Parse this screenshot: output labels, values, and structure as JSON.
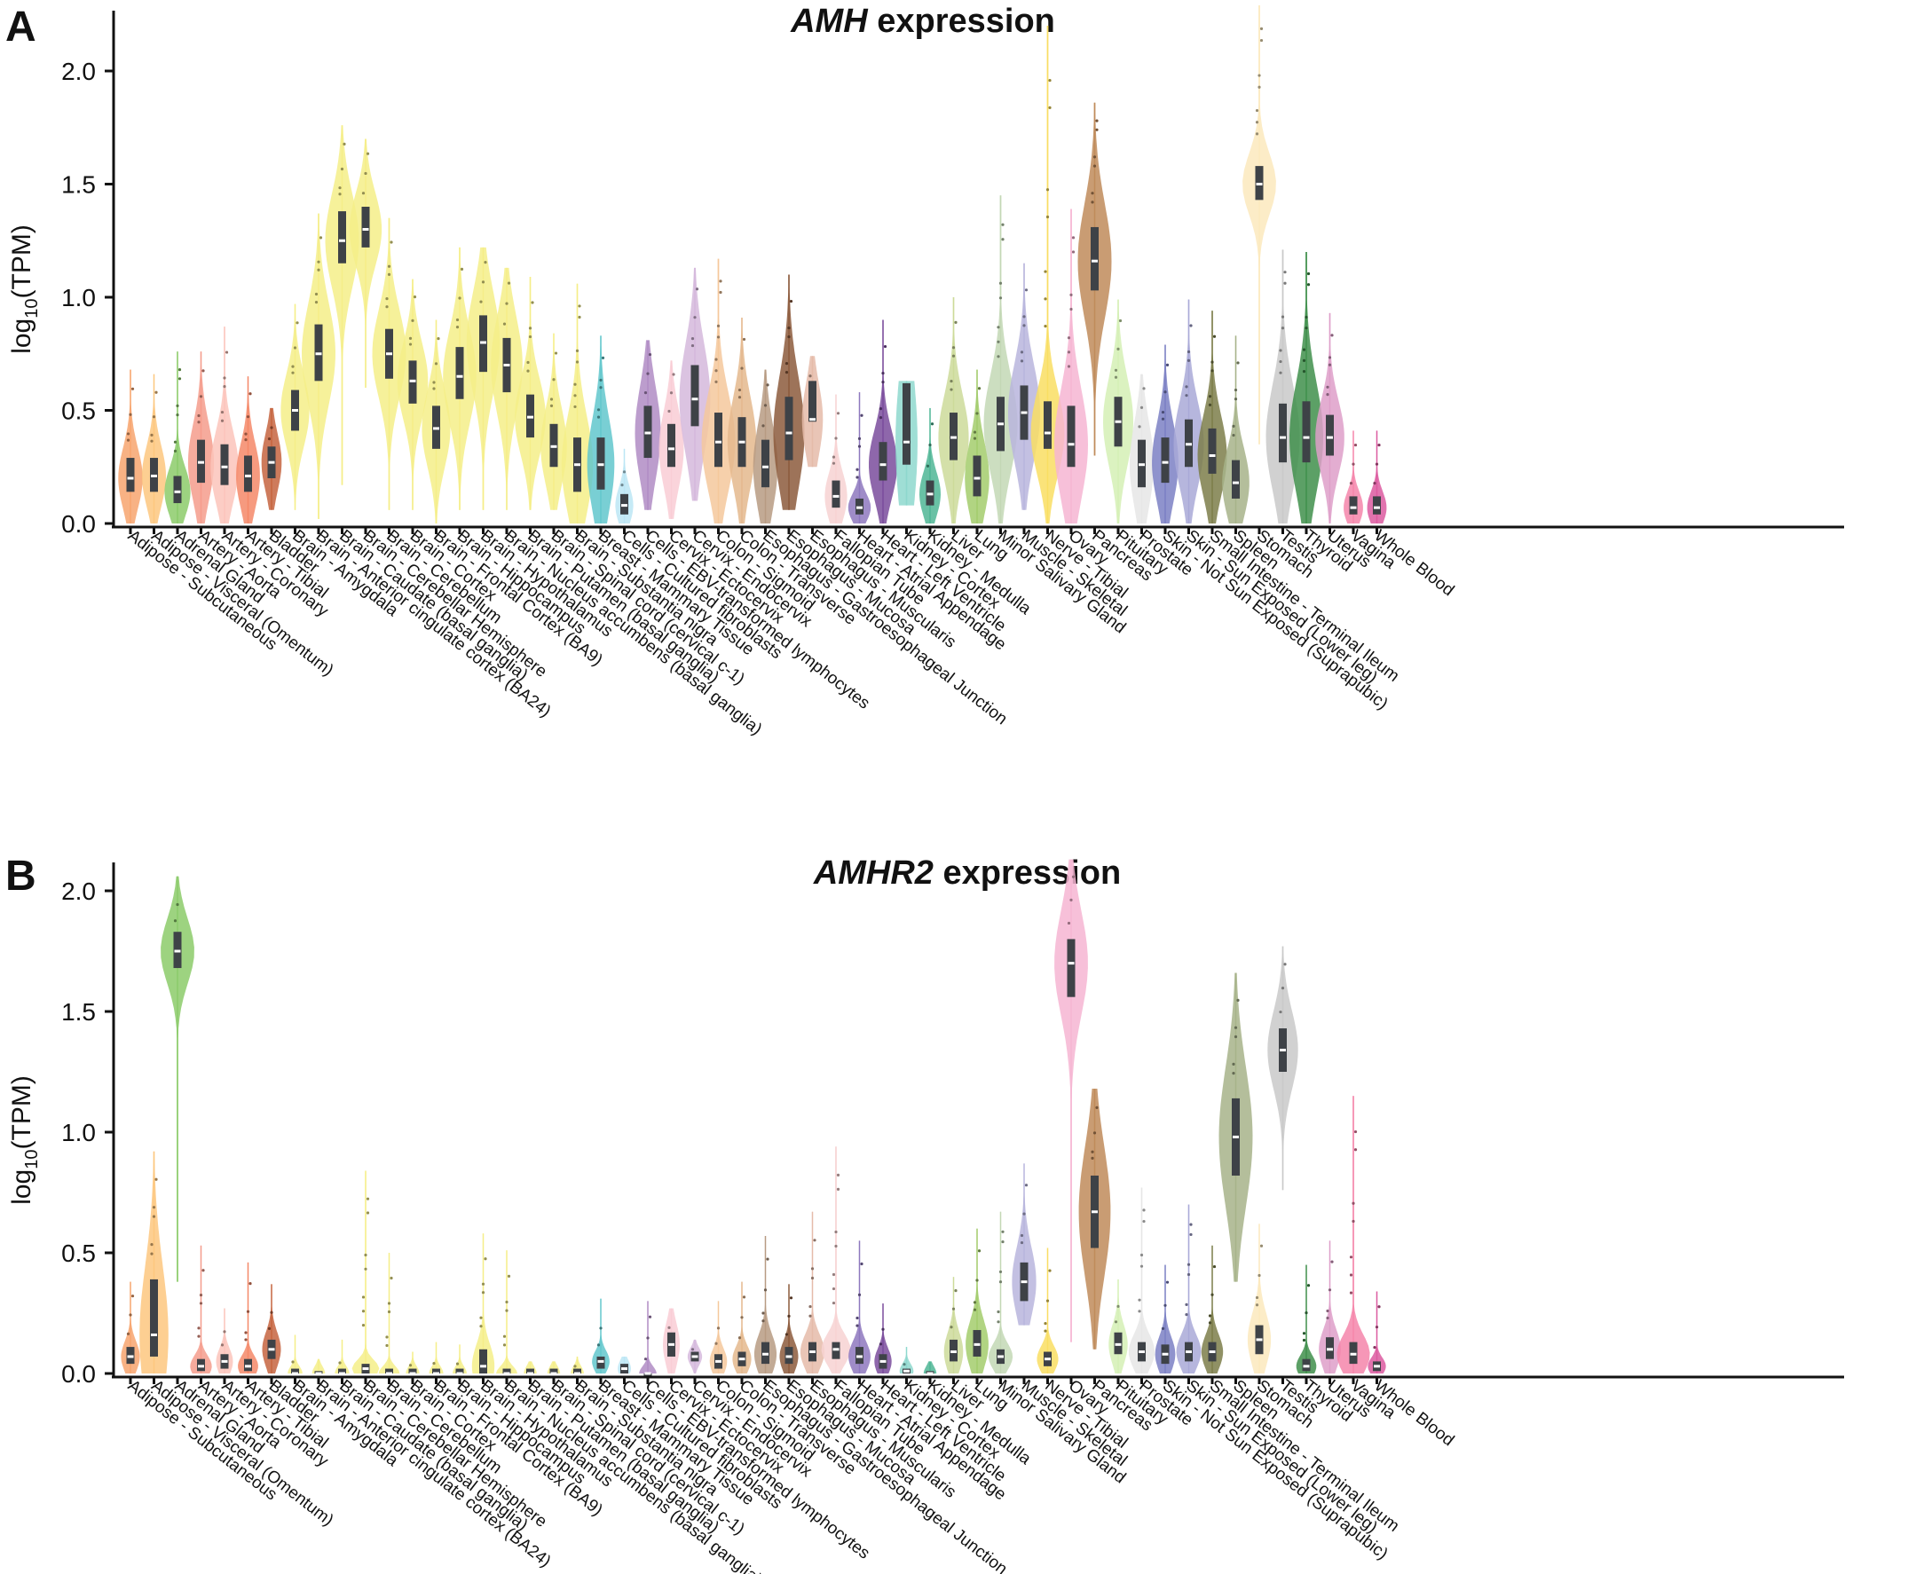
{
  "figure": {
    "aspect_note": ""
  },
  "chart_data": [
    {
      "type": "violin",
      "panel": "A",
      "title": "AMH expression",
      "title_gene": "AMH",
      "title_suffix": " expression",
      "ylabel": "log10(TPM)",
      "ylabel_main": "log",
      "ylabel_sub": "10",
      "ylabel_unit": "(TPM)",
      "ylim": [
        0,
        2.3
      ],
      "yticks": [
        "0.0",
        "0.5",
        "1.0",
        "1.5",
        "2.0"
      ],
      "ytick_values": [
        0,
        0.5,
        1.0,
        1.5,
        2.0
      ],
      "categories": [
        "Adipose - Subcutaneous",
        "Adipose - Visceral (Omentum)",
        "Adrenal Gland",
        "Artery - Aorta",
        "Artery - Coronary",
        "Artery - Tibial",
        "Bladder",
        "Brain - Amygdala",
        "Brain - Anterior cingulate cortex (BA24)",
        "Brain - Caudate (basal ganglia)",
        "Brain - Cerebellar Hemisphere",
        "Brain - Cerebellum",
        "Brain - Cortex",
        "Brain - Frontal Cortex (BA9)",
        "Brain - Hippocampus",
        "Brain - Hypothalamus",
        "Brain - Nucleus accumbens (basal ganglia)",
        "Brain - Putamen (basal ganglia)",
        "Brain - Spinal cord (cervical c-1)",
        "Brain - Substantia nigra",
        "Breast - Mammary Tissue",
        "Cells - Cultured fibroblasts",
        "Cells - EBV-transformed lymphocytes",
        "Cervix - Ectocervix",
        "Cervix - Endocervix",
        "Colon - Sigmoid",
        "Colon - Transverse",
        "Esophagus - Gastroesophageal Junction",
        "Esophagus - Mucosa",
        "Esophagus - Muscularis",
        "Fallopian Tube",
        "Heart - Atrial Appendage",
        "Heart - Left Ventricle",
        "Kidney - Cortex",
        "Kidney - Medulla",
        "Liver",
        "Lung",
        "Minor Salivary Gland",
        "Muscle - Skeletal",
        "Nerve - Tibial",
        "Ovary",
        "Pancreas",
        "Pituitary",
        "Prostate",
        "Skin - Not Sun Exposed (Suprapubic)",
        "Skin - Sun Exposed (Lower leg)",
        "Small Intestine - Terminal Ileum",
        "Spleen",
        "Stomach",
        "Testis",
        "Thyroid",
        "Uterus",
        "Vagina",
        "Whole Blood"
      ],
      "colors": [
        "#F7A56E",
        "#FDC77F",
        "#8CCB6A",
        "#F59C8C",
        "#FBC4BB",
        "#F58868",
        "#C6643F",
        "#F5EE88",
        "#F5EE88",
        "#F5EE88",
        "#F5EE88",
        "#F5EE88",
        "#F5EE88",
        "#F5EE88",
        "#F5EE88",
        "#F5EE88",
        "#F5EE88",
        "#F5EE88",
        "#F5EE88",
        "#F5EE88",
        "#62C7CC",
        "#BCE6F5",
        "#B08CC4",
        "#F9CDD5",
        "#D5B8DC",
        "#F5C89C",
        "#E4B88D",
        "#B79B83",
        "#8C5A3C",
        "#E5BBA9",
        "#F7D2D2",
        "#8E78BE",
        "#7A4C9C",
        "#8ED8CE",
        "#4FB695",
        "#CDDB9A",
        "#A3CC6C",
        "#C3D8B5",
        "#B8B5DD",
        "#F9DE63",
        "#F6B5D2",
        "#C08B5B",
        "#D5F0B5",
        "#E6E6E6",
        "#7B80C4",
        "#A9A9D7",
        "#7C7E4A",
        "#A7B38A",
        "#FCE9BD",
        "#C9C9C9",
        "#3F8F4B",
        "#DE9FC9",
        "#F585AA",
        "#DC5BA0"
      ],
      "medians": [
        0.2,
        0.21,
        0.14,
        0.27,
        0.25,
        0.21,
        0.27,
        0.5,
        0.75,
        1.25,
        1.3,
        0.75,
        0.63,
        0.42,
        0.65,
        0.8,
        0.7,
        0.47,
        0.34,
        0.26,
        0.26,
        0.08,
        0.4,
        0.33,
        0.55,
        0.36,
        0.36,
        0.25,
        0.4,
        0.46,
        0.12,
        0.07,
        0.26,
        0.36,
        0.13,
        0.38,
        0.2,
        0.44,
        0.49,
        0.4,
        0.35,
        1.16,
        0.45,
        0.26,
        0.27,
        0.35,
        0.3,
        0.18,
        1.5,
        0.38,
        0.38,
        0.38,
        0.07,
        0.07
      ],
      "q1": [
        0.14,
        0.14,
        0.09,
        0.18,
        0.17,
        0.14,
        0.2,
        0.41,
        0.63,
        1.15,
        1.22,
        0.64,
        0.53,
        0.33,
        0.55,
        0.67,
        0.58,
        0.38,
        0.25,
        0.14,
        0.15,
        0.04,
        0.29,
        0.25,
        0.43,
        0.25,
        0.25,
        0.16,
        0.28,
        0.45,
        0.07,
        0.04,
        0.19,
        0.26,
        0.08,
        0.28,
        0.12,
        0.32,
        0.37,
        0.33,
        0.25,
        1.03,
        0.34,
        0.16,
        0.18,
        0.25,
        0.22,
        0.11,
        1.43,
        0.27,
        0.27,
        0.3,
        0.04,
        0.04
      ],
      "q3": [
        0.29,
        0.29,
        0.21,
        0.37,
        0.35,
        0.3,
        0.34,
        0.59,
        0.88,
        1.38,
        1.4,
        0.86,
        0.72,
        0.52,
        0.78,
        0.92,
        0.82,
        0.57,
        0.44,
        0.38,
        0.38,
        0.13,
        0.52,
        0.44,
        0.7,
        0.49,
        0.47,
        0.37,
        0.56,
        0.63,
        0.19,
        0.11,
        0.36,
        0.62,
        0.19,
        0.49,
        0.3,
        0.56,
        0.61,
        0.54,
        0.52,
        1.31,
        0.56,
        0.37,
        0.38,
        0.46,
        0.42,
        0.28,
        1.58,
        0.53,
        0.54,
        0.48,
        0.12,
        0.12
      ],
      "lo": [
        0.0,
        0.0,
        0.0,
        0.0,
        0.0,
        0.0,
        0.06,
        0.06,
        0.02,
        0.17,
        0.6,
        0.06,
        0.06,
        0.0,
        0.06,
        0.06,
        0.06,
        0.06,
        0.06,
        0.0,
        0.0,
        0.0,
        0.06,
        0.02,
        0.1,
        0.0,
        0.0,
        0.0,
        0.06,
        0.25,
        0.0,
        0.0,
        0.0,
        0.08,
        0.0,
        0.0,
        0.0,
        0.0,
        0.06,
        0.0,
        0.0,
        0.3,
        0.0,
        0.0,
        0.0,
        0.0,
        0.0,
        0.0,
        0.35,
        0.0,
        0.0,
        0.0,
        0.0,
        0.0
      ],
      "hi": [
        0.68,
        0.66,
        0.76,
        0.76,
        0.87,
        0.65,
        0.51,
        0.97,
        1.37,
        1.76,
        1.7,
        1.35,
        1.08,
        0.9,
        1.22,
        1.22,
        1.13,
        1.09,
        0.84,
        1.06,
        0.83,
        0.33,
        0.81,
        0.72,
        1.13,
        1.17,
        0.91,
        0.68,
        1.1,
        0.74,
        0.57,
        0.58,
        0.9,
        0.63,
        0.51,
        1.0,
        0.68,
        1.45,
        1.15,
        2.2,
        1.39,
        1.86,
        0.99,
        0.66,
        0.79,
        0.99,
        0.94,
        0.83,
        2.29,
        1.21,
        1.2,
        0.93,
        0.41,
        0.41
      ]
    },
    {
      "type": "violin",
      "panel": "B",
      "title": "AMHR2 expression",
      "title_gene": "AMHR2",
      "title_suffix": " expression",
      "ylabel": "log10(TPM)",
      "ylabel_main": "log",
      "ylabel_sub": "10",
      "ylabel_unit": "(TPM)",
      "ylim": [
        0,
        2.1
      ],
      "yticks": [
        "0.0",
        "0.5",
        "1.0",
        "1.5",
        "2.0"
      ],
      "ytick_values": [
        0,
        0.5,
        1.0,
        1.5,
        2.0
      ],
      "categories": [
        "Adipose - Subcutaneous",
        "Adipose - Visceral (Omentum)",
        "Adrenal Gland",
        "Artery - Aorta",
        "Artery - Coronary",
        "Artery - Tibial",
        "Bladder",
        "Brain - Amygdala",
        "Brain - Anterior cingulate cortex (BA24)",
        "Brain - Caudate (basal ganglia)",
        "Brain - Cerebellar Hemisphere",
        "Brain - Cerebellum",
        "Brain - Cortex",
        "Brain - Frontal Cortex (BA9)",
        "Brain - Hippocampus",
        "Brain - Hypothalamus",
        "Brain - Nucleus accumbens (basal ganglia)",
        "Brain - Putamen (basal ganglia)",
        "Brain - Spinal cord (cervical c-1)",
        "Brain - Substantia nigra",
        "Breast - Mammary Tissue",
        "Cells - Cultured fibroblasts",
        "Cells - EBV-transformed lymphocytes",
        "Cervix - Ectocervix",
        "Cervix - Endocervix",
        "Colon - Sigmoid",
        "Colon - Transverse",
        "Esophagus - Gastroesophageal Junction",
        "Esophagus - Mucosa",
        "Esophagus - Muscularis",
        "Fallopian Tube",
        "Heart - Atrial Appendage",
        "Heart - Left Ventricle",
        "Kidney - Cortex",
        "Kidney - Medulla",
        "Liver",
        "Lung",
        "Minor Salivary Gland",
        "Muscle - Skeletal",
        "Nerve - Tibial",
        "Ovary",
        "Pancreas",
        "Pituitary",
        "Prostate",
        "Skin - Not Sun Exposed (Suprapubic)",
        "Skin - Sun Exposed (Lower leg)",
        "Small Intestine - Terminal Ileum",
        "Spleen",
        "Stomach",
        "Testis",
        "Thyroid",
        "Uterus",
        "Vagina",
        "Whole Blood"
      ],
      "colors": [
        "#F7A56E",
        "#FDC77F",
        "#8CCB6A",
        "#F59C8C",
        "#FBC4BB",
        "#F58868",
        "#C6643F",
        "#F5EE88",
        "#F5EE88",
        "#F5EE88",
        "#F5EE88",
        "#F5EE88",
        "#F5EE88",
        "#F5EE88",
        "#F5EE88",
        "#F5EE88",
        "#F5EE88",
        "#F5EE88",
        "#F5EE88",
        "#F5EE88",
        "#62C7CC",
        "#BCE6F5",
        "#B08CC4",
        "#F9CDD5",
        "#D5B8DC",
        "#F5C89C",
        "#E4B88D",
        "#B79B83",
        "#8C5A3C",
        "#E5BBA9",
        "#F7D2D2",
        "#8E78BE",
        "#7A4C9C",
        "#8ED8CE",
        "#4FB695",
        "#CDDB9A",
        "#A3CC6C",
        "#C3D8B5",
        "#B8B5DD",
        "#F9DE63",
        "#F6B5D2",
        "#C08B5B",
        "#D5F0B5",
        "#E6E6E6",
        "#7B80C4",
        "#A9A9D7",
        "#7C7E4A",
        "#A7B38A",
        "#FCE9BD",
        "#C9C9C9",
        "#3F8F4B",
        "#DE9FC9",
        "#F585AA",
        "#DC5BA0"
      ],
      "medians": [
        0.07,
        0.16,
        1.75,
        0.03,
        0.05,
        0.03,
        0.1,
        0.0,
        0.0,
        0.0,
        0.02,
        0.0,
        0.0,
        0.0,
        0.0,
        0.03,
        0.0,
        0.0,
        0.0,
        0.0,
        0.05,
        0.02,
        0.0,
        0.12,
        0.07,
        0.05,
        0.06,
        0.08,
        0.07,
        0.09,
        0.1,
        0.07,
        0.05,
        0.01,
        0.0,
        0.09,
        0.12,
        0.07,
        0.38,
        0.06,
        1.7,
        0.67,
        0.12,
        0.09,
        0.08,
        0.09,
        0.09,
        0.98,
        0.14,
        1.34,
        0.03,
        0.1,
        0.08,
        0.03
      ],
      "q1": [
        0.04,
        0.07,
        1.68,
        0.01,
        0.02,
        0.01,
        0.06,
        0.0,
        0.0,
        0.0,
        0.0,
        0.0,
        0.0,
        0.0,
        0.0,
        0.0,
        0.0,
        0.0,
        0.0,
        0.0,
        0.02,
        0.0,
        0.0,
        0.07,
        0.05,
        0.02,
        0.03,
        0.04,
        0.04,
        0.05,
        0.06,
        0.04,
        0.02,
        0.0,
        0.0,
        0.05,
        0.07,
        0.04,
        0.3,
        0.03,
        1.56,
        0.52,
        0.08,
        0.05,
        0.04,
        0.05,
        0.05,
        0.82,
        0.08,
        1.25,
        0.01,
        0.06,
        0.04,
        0.01
      ],
      "q3": [
        0.11,
        0.39,
        1.83,
        0.06,
        0.08,
        0.06,
        0.14,
        0.02,
        0.01,
        0.02,
        0.04,
        0.02,
        0.02,
        0.02,
        0.02,
        0.1,
        0.02,
        0.02,
        0.02,
        0.02,
        0.07,
        0.04,
        0.0,
        0.17,
        0.09,
        0.08,
        0.09,
        0.13,
        0.11,
        0.13,
        0.13,
        0.11,
        0.08,
        0.02,
        0.01,
        0.14,
        0.18,
        0.1,
        0.46,
        0.09,
        1.8,
        0.82,
        0.17,
        0.13,
        0.12,
        0.13,
        0.13,
        1.14,
        0.2,
        1.43,
        0.06,
        0.15,
        0.13,
        0.05
      ],
      "lo": [
        0.0,
        0.0,
        0.38,
        0.0,
        0.0,
        0.0,
        0.0,
        0.0,
        0.0,
        0.0,
        0.0,
        0.0,
        0.0,
        0.0,
        0.0,
        0.0,
        0.0,
        0.0,
        0.0,
        0.0,
        0.0,
        0.0,
        0.0,
        0.0,
        0.0,
        0.0,
        0.0,
        0.0,
        0.0,
        0.0,
        0.0,
        0.0,
        0.0,
        0.0,
        0.0,
        0.0,
        0.0,
        0.0,
        0.2,
        0.0,
        0.13,
        0.1,
        0.0,
        0.0,
        0.0,
        0.0,
        0.0,
        0.38,
        0.0,
        0.76,
        0.0,
        0.0,
        0.0,
        0.0
      ],
      "hi": [
        0.38,
        0.92,
        2.06,
        0.53,
        0.27,
        0.46,
        0.37,
        0.16,
        0.06,
        0.14,
        0.84,
        0.5,
        0.09,
        0.13,
        0.12,
        0.58,
        0.51,
        0.05,
        0.05,
        0.07,
        0.31,
        0.07,
        0.3,
        0.27,
        0.14,
        0.3,
        0.38,
        0.57,
        0.37,
        0.67,
        0.94,
        0.55,
        0.29,
        0.11,
        0.05,
        0.4,
        0.6,
        0.67,
        0.87,
        0.52,
        2.13,
        1.18,
        0.39,
        0.77,
        0.45,
        0.7,
        0.53,
        1.66,
        0.62,
        1.77,
        0.45,
        0.55,
        1.15,
        0.34
      ]
    }
  ]
}
